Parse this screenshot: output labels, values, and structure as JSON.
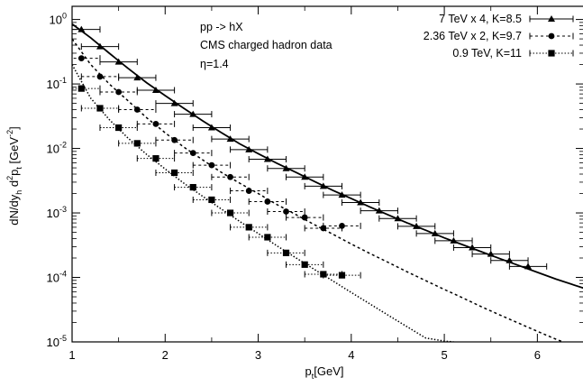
{
  "chart_data": {
    "type": "scatter",
    "title": "",
    "xlabel": "pt[GeV]",
    "ylabel": "dN/dyh d2pt [GeV-2]",
    "xlim": [
      1,
      6.5
    ],
    "ylim": [
      1e-05,
      1.6
    ],
    "yscale": "log",
    "xticks": [
      1,
      2,
      3,
      4,
      5,
      6
    ],
    "yticks": [
      1,
      0.1,
      0.01,
      0.001,
      0.0001,
      1e-05
    ],
    "grid": false,
    "legend_position": "top-right",
    "annotations": [
      "pp -> hX",
      "CMS charged hadron data",
      "η=1.4"
    ],
    "legend_entries": [
      "7 TeV x 4,  K=8.5",
      "2.36 TeV x 2, K=9.7",
      "0.9 TeV, K=11"
    ],
    "series": [
      {
        "name": "7 TeV x 4,  K=8.5",
        "marker": "triangle",
        "x": [
          1.1,
          1.3,
          1.5,
          1.7,
          1.9,
          2.1,
          2.3,
          2.5,
          2.7,
          2.9,
          3.1,
          3.3,
          3.5,
          3.7,
          3.9,
          4.1,
          4.3,
          4.5,
          4.7,
          4.9,
          5.1,
          5.3,
          5.5,
          5.7,
          5.9
        ],
        "y": [
          0.7,
          0.38,
          0.22,
          0.125,
          0.08,
          0.05,
          0.034,
          0.021,
          0.014,
          0.0096,
          0.0068,
          0.0049,
          0.0036,
          0.0026,
          0.0019,
          0.00145,
          0.00108,
          0.00082,
          0.00062,
          0.00048,
          0.00037,
          0.00029,
          0.00023,
          0.000183,
          0.000148
        ],
        "x_err": 0.2
      },
      {
        "name": "2.36 TeV x 2, K=9.7",
        "marker": "circle",
        "x": [
          1.1,
          1.3,
          1.5,
          1.7,
          1.9,
          2.1,
          2.3,
          2.5,
          2.7,
          2.9,
          3.1,
          3.3,
          3.5,
          3.7,
          3.9
        ],
        "y": [
          0.25,
          0.13,
          0.075,
          0.04,
          0.024,
          0.0135,
          0.0085,
          0.0055,
          0.0036,
          0.0022,
          0.0015,
          0.00105,
          0.00085,
          0.00058,
          0.00063
        ],
        "x_err": 0.2
      },
      {
        "name": "0.9 TeV, K=11",
        "marker": "square",
        "x": [
          1.1,
          1.3,
          1.5,
          1.7,
          1.9,
          2.1,
          2.3,
          2.5,
          2.7,
          2.9,
          3.1,
          3.3,
          3.5,
          3.7,
          3.9
        ],
        "y": [
          0.085,
          0.042,
          0.021,
          0.012,
          0.007,
          0.0042,
          0.0025,
          0.0016,
          0.001,
          0.0006,
          0.00042,
          0.00024,
          0.000158,
          0.000112,
          0.000108
        ],
        "x_err": 0.2
      }
    ],
    "curves": [
      {
        "series": "7 TeV x 4,  K=8.5",
        "style": "solid",
        "x": [
          1.0,
          1.2,
          1.4,
          1.6,
          1.8,
          2.0,
          2.2,
          2.4,
          2.6,
          2.8,
          3.0,
          3.2,
          3.4,
          3.6,
          3.8,
          4.0,
          4.2,
          4.4,
          4.6,
          4.8,
          5.0,
          5.2,
          5.4,
          5.6,
          5.8,
          6.0,
          6.2,
          6.5
        ],
        "y": [
          0.85,
          0.52,
          0.3,
          0.175,
          0.105,
          0.066,
          0.042,
          0.027,
          0.0178,
          0.0118,
          0.0083,
          0.0059,
          0.0043,
          0.0031,
          0.00225,
          0.00167,
          0.00124,
          0.00093,
          0.0007,
          0.00054,
          0.00041,
          0.00032,
          0.00025,
          0.000195,
          0.000153,
          0.00012,
          9.4e-05,
          6.8e-05
        ]
      },
      {
        "series": "2.36 TeV x 2, K=9.7",
        "style": "dashed",
        "x": [
          1.0,
          1.2,
          1.4,
          1.6,
          1.8,
          2.0,
          2.2,
          2.4,
          2.6,
          2.8,
          3.0,
          3.2,
          3.4,
          3.6,
          3.8,
          4.0,
          4.2,
          4.4,
          4.6,
          4.8,
          5.0,
          5.2,
          5.4,
          5.6,
          5.8,
          6.0,
          6.2,
          6.5
        ],
        "y": [
          0.5,
          0.2,
          0.1,
          0.055,
          0.03,
          0.0175,
          0.0105,
          0.0067,
          0.0043,
          0.0029,
          0.002,
          0.00135,
          0.00095,
          0.00066,
          0.00047,
          0.00033,
          0.000235,
          0.00017,
          0.000122,
          8.9e-05,
          6.5e-05,
          4.8e-05,
          3.5e-05,
          2.6e-05,
          1.95e-05,
          1.46e-05,
          1.1e-05,
          7.5e-06
        ]
      },
      {
        "series": "0.9 TeV, K=11",
        "style": "dotted",
        "x": [
          1.0,
          1.2,
          1.4,
          1.6,
          1.8,
          2.0,
          2.2,
          2.4,
          2.6,
          2.8,
          3.0,
          3.2,
          3.4,
          3.6,
          3.8,
          4.0,
          4.2,
          4.4,
          4.6,
          4.8,
          5.0,
          5.1
        ],
        "y": [
          0.2,
          0.06,
          0.028,
          0.0145,
          0.0081,
          0.0048,
          0.0029,
          0.00182,
          0.00116,
          0.00074,
          0.00048,
          0.00031,
          0.000203,
          0.000134,
          8.85e-05,
          5.85e-05,
          3.88e-05,
          2.58e-05,
          1.72e-05,
          1.15e-05,
          1.03e-05,
          1e-05
        ]
      }
    ]
  }
}
